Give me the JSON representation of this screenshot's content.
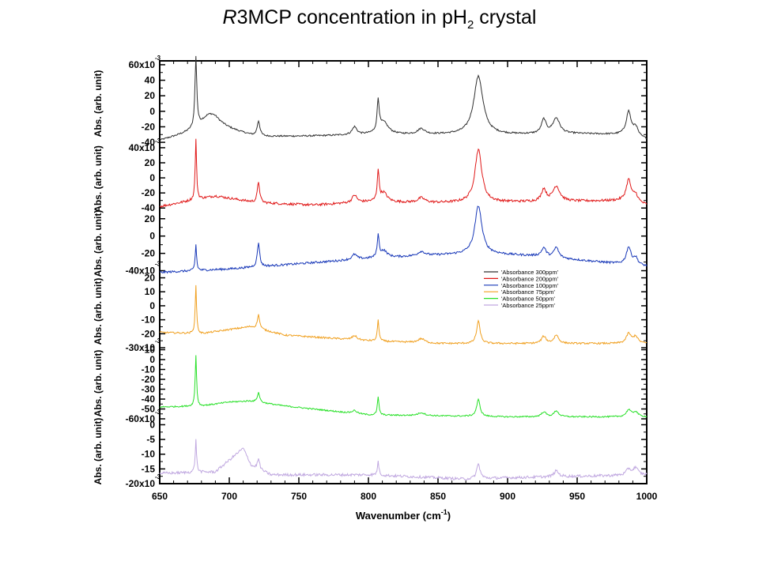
{
  "title": {
    "italic": "R",
    "main": "3MCP concentration in pH",
    "sub": "2",
    "tail": " crystal"
  },
  "chart_data": {
    "type": "line",
    "xlabel": "Wavenumber (cm",
    "xlabel_sup": "-1",
    "xlabel_end": ")",
    "xlim": [
      650,
      1000
    ],
    "xticks": [
      650,
      700,
      750,
      800,
      850,
      900,
      950,
      1000
    ],
    "legend_position": "right-center",
    "panels": [
      {
        "name": "'Absorbance 300ppm'",
        "color": "#303030",
        "ylabel": "Abs. (arb. unit)",
        "ylim": [
          -45,
          65
        ],
        "yticks": [
          "60x10",
          "40",
          "20",
          "0",
          "-20",
          "-40"
        ],
        "scale_exp": "-3",
        "baseline_x": [
          650,
          690,
          720,
          760,
          800,
          850,
          900,
          950,
          985,
          1000
        ],
        "baseline_y": [
          -38,
          -20,
          -33,
          -32,
          -30,
          -30,
          -30,
          -29,
          -30,
          -36
        ],
        "peaks": [
          [
            676,
            90,
            0.8
          ],
          [
            686,
            18,
            8
          ],
          [
            721,
            20,
            1.2
          ],
          [
            790,
            10,
            2
          ],
          [
            807,
            40,
            0.9
          ],
          [
            811,
            15,
            4
          ],
          [
            838,
            7,
            3
          ],
          [
            879,
            75,
            4
          ],
          [
            926,
            18,
            2
          ],
          [
            935,
            20,
            3
          ],
          [
            987,
            30,
            2
          ],
          [
            992,
            12,
            2
          ]
        ],
        "noise": 1.0
      },
      {
        "name": "'Absorbance 200ppm'",
        "color": "#e01818",
        "ylabel": "Abs. (arb. unit)",
        "ylim": [
          -45,
          42
        ],
        "yticks": [
          "40x10",
          "20",
          "0",
          "-20",
          "-40"
        ],
        "scale_exp": "-3",
        "baseline_x": [
          650,
          690,
          720,
          760,
          800,
          850,
          900,
          950,
          985,
          1000
        ],
        "baseline_y": [
          -38,
          -24,
          -33,
          -36,
          -32,
          -33,
          -32,
          -31,
          -30,
          -36
        ],
        "peaks": [
          [
            676,
            80,
            0.6
          ],
          [
            721,
            28,
            1.0
          ],
          [
            790,
            10,
            2
          ],
          [
            807,
            40,
            0.8
          ],
          [
            811,
            12,
            3
          ],
          [
            838,
            6,
            3
          ],
          [
            879,
            70,
            3
          ],
          [
            926,
            16,
            2
          ],
          [
            935,
            20,
            3
          ],
          [
            987,
            28,
            2
          ],
          [
            992,
            10,
            2
          ]
        ],
        "noise": 1.6
      },
      {
        "name": "'Absorbance 100ppm'",
        "color": "#1838b8",
        "ylabel": "Abs. (arb. unit)",
        "ylim": [
          -45,
          28
        ],
        "yticks": [
          "20",
          "0",
          "-20",
          "-40x10"
        ],
        "scale_exp": "-3",
        "baseline_x": [
          650,
          700,
          750,
          800,
          850,
          880,
          920,
          1000
        ],
        "baseline_y": [
          -42,
          -38,
          -32,
          -26,
          -22,
          -20,
          -23,
          -35
        ],
        "peaks": [
          [
            676,
            30,
            0.6
          ],
          [
            721,
            28,
            1.0
          ],
          [
            790,
            6,
            2
          ],
          [
            807,
            25,
            0.8
          ],
          [
            811,
            8,
            3
          ],
          [
            838,
            5,
            3
          ],
          [
            879,
            55,
            3
          ],
          [
            926,
            10,
            2
          ],
          [
            935,
            12,
            2
          ],
          [
            987,
            20,
            2
          ],
          [
            992,
            8,
            2
          ]
        ],
        "noise": 1.2
      },
      {
        "name": "'Absorbance 75ppm'",
        "color": "#f0a020",
        "ylabel": "Abs. (arb. unit)",
        "ylim": [
          -30,
          22
        ],
        "yticks": [
          "20",
          "10",
          "0",
          "-10",
          "-20",
          "-30x10"
        ],
        "scale_exp": "-3",
        "baseline_x": [
          650,
          680,
          700,
          715,
          740,
          800,
          850,
          900,
          1000
        ],
        "baseline_y": [
          -19,
          -20,
          -17,
          -15,
          -21,
          -25,
          -27,
          -27,
          -27
        ],
        "peaks": [
          [
            676,
            34,
            0.6
          ],
          [
            721,
            10,
            1.0
          ],
          [
            790,
            3,
            2
          ],
          [
            807,
            15,
            0.7
          ],
          [
            838,
            3,
            3
          ],
          [
            879,
            16,
            1.5
          ],
          [
            926,
            5,
            2
          ],
          [
            935,
            6,
            2
          ],
          [
            987,
            7,
            2
          ],
          [
            992,
            5,
            2
          ]
        ],
        "noise": 0.6
      },
      {
        "name": "'Absorbance 50ppm'",
        "color": "#28e028",
        "ylabel": "Abs. (arb. unit)",
        "ylim": [
          -60,
          12
        ],
        "yticks": [
          "10",
          "0",
          "-10",
          "-20",
          "-30",
          "-40",
          "-50",
          "-60x10"
        ],
        "scale_exp": "-3",
        "baseline_x": [
          650,
          680,
          700,
          715,
          740,
          780,
          800,
          850,
          900,
          1000
        ],
        "baseline_y": [
          -48,
          -47,
          -43,
          -42,
          -47,
          -53,
          -56,
          -57,
          -58,
          -58
        ],
        "peaks": [
          [
            676,
            52,
            0.6
          ],
          [
            721,
            10,
            1.0
          ],
          [
            790,
            3,
            2
          ],
          [
            807,
            18,
            0.7
          ],
          [
            838,
            3,
            3
          ],
          [
            879,
            17,
            1.5
          ],
          [
            926,
            5,
            2
          ],
          [
            935,
            6,
            2
          ],
          [
            987,
            7,
            2
          ],
          [
            992,
            5,
            2
          ]
        ],
        "noise": 0.7
      },
      {
        "name": "'Absorbance 25ppm'",
        "color": "#c0a8e0",
        "ylabel": "Abs. (arb. unit)",
        "ylim": [
          -20,
          2
        ],
        "yticks": [
          "0",
          "-5",
          "-10",
          "-15",
          "-20x10"
        ],
        "scale_exp": "-3",
        "baseline_x": [
          650,
          690,
          700,
          710,
          716,
          730,
          800,
          850,
          870,
          900,
          1000
        ],
        "baseline_y": [
          -16.5,
          -16,
          -12,
          -8,
          -14,
          -17,
          -17,
          -18,
          -18.5,
          -18,
          -17
        ],
        "peaks": [
          [
            676,
            11,
            0.6
          ],
          [
            721,
            3.5,
            1.0
          ],
          [
            807,
            4.5,
            0.7
          ],
          [
            879,
            5,
            1.5
          ],
          [
            935,
            2,
            2
          ],
          [
            987,
            2,
            2
          ],
          [
            992,
            2.5,
            2
          ]
        ],
        "noise": 0.45
      }
    ]
  }
}
